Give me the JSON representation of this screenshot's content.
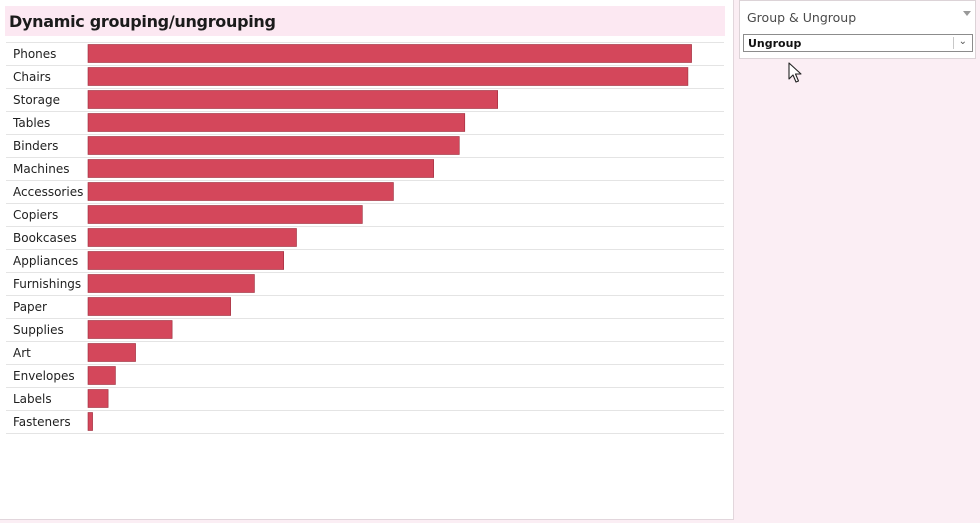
{
  "chart_data": {
    "type": "bar",
    "orientation": "horizontal",
    "title": "Dynamic grouping/ungrouping",
    "categories": [
      "Phones",
      "Chairs",
      "Storage",
      "Tables",
      "Binders",
      "Machines",
      "Accessories",
      "Copiers",
      "Bookcases",
      "Appliances",
      "Furnishings",
      "Paper",
      "Supplies",
      "Art",
      "Envelopes",
      "Labels",
      "Fasteners"
    ],
    "values": [
      330,
      328,
      224,
      206,
      203,
      189,
      167,
      150,
      114,
      107,
      91,
      78,
      46,
      26,
      15,
      11,
      2.5
    ],
    "xlim": [
      0,
      345
    ],
    "bar_color": "#d4475b",
    "grid": false,
    "legend": "none"
  },
  "control": {
    "label": "Group & Ungroup",
    "selected": "Ungroup"
  },
  "colors": {
    "background": "#fbeef4",
    "title_bar": "#fce8f2"
  }
}
